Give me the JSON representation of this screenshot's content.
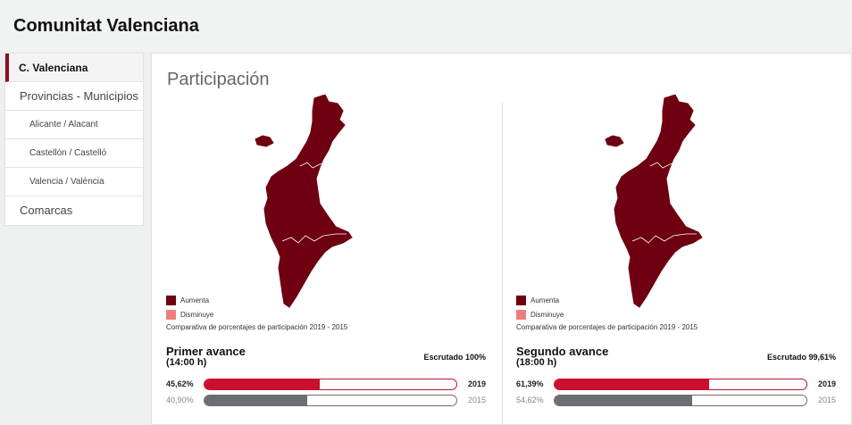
{
  "header": {
    "title": "Comunitat Valenciana"
  },
  "sidebar": {
    "items": [
      {
        "label": "C. Valenciana",
        "active": true,
        "level": 0
      },
      {
        "label": "Provincias - Municipios",
        "active": false,
        "level": 0
      },
      {
        "label": "Alicante / Alacant",
        "active": false,
        "level": 1
      },
      {
        "label": "Castellón / Castelló",
        "active": false,
        "level": 1
      },
      {
        "label": "Valencia / València",
        "active": false,
        "level": 1
      },
      {
        "label": "Comarcas",
        "active": false,
        "level": 0
      }
    ]
  },
  "main": {
    "title": "Participación",
    "legend": {
      "up_label": "Aumenta",
      "down_label": "Disminuye",
      "up_color": "#6e0011",
      "down_color": "#ef7f7f"
    },
    "map_color": "#6e0011",
    "panels": [
      {
        "note": "Comparativa de porcentajes de participación 2019 - 2015",
        "title": "Primer avance",
        "time": "(14:00 h)",
        "escrutado": "Escrutado 100%",
        "current": {
          "pct_label": "45,62%",
          "fraction": 0.4562,
          "year": "2019"
        },
        "previous": {
          "pct_label": "40,90%",
          "fraction": 0.409,
          "year": "2015"
        }
      },
      {
        "note": "Comparativa de porcentajes de participación 2019 - 2015",
        "title": "Segundo avance",
        "time": "(18:00 h)",
        "escrutado": "Escrutado 99,61%",
        "current": {
          "pct_label": "61,39%",
          "fraction": 0.6139,
          "year": "2019"
        },
        "previous": {
          "pct_label": "54,62%",
          "fraction": 0.5462,
          "year": "2015"
        }
      }
    ]
  }
}
